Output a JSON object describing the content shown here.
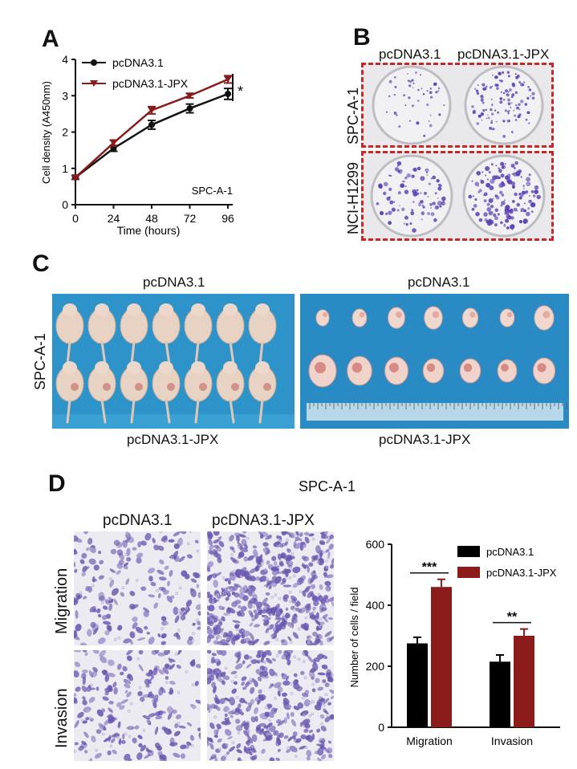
{
  "panels": {
    "A": {
      "letter": "A",
      "cell_line": "SPC-A-1",
      "significance": "*",
      "chart_data": {
        "type": "line",
        "x": [
          0,
          24,
          48,
          72,
          96
        ],
        "xticks": [
          "0",
          "24",
          "48",
          "72",
          "96"
        ],
        "xlabel": "Time (hours)",
        "ylabel": "Cell density (A450nm)",
        "ylim": [
          0,
          4
        ],
        "yticks": [
          "0",
          "1",
          "2",
          "3",
          "4"
        ],
        "legend_position": "top-left",
        "series": [
          {
            "name": "pcDNA3.1",
            "values": [
              0.75,
              1.55,
              2.2,
              2.65,
              3.05
            ],
            "errors": [
              0.05,
              0.08,
              0.12,
              0.12,
              0.15
            ],
            "color": "#111111",
            "marker": "circle"
          },
          {
            "name": "pcDNA3.1-JPX",
            "values": [
              0.75,
              1.7,
              2.6,
              3.0,
              3.45
            ],
            "errors": [
              0.05,
              0.08,
              0.1,
              0.06,
              0.1
            ],
            "color": "#8b1a1a",
            "marker": "triangle-down"
          }
        ]
      }
    },
    "B": {
      "letter": "B",
      "col_labels": [
        "pcDNA3.1",
        "pcDNA3.1-JPX"
      ],
      "row_labels": [
        "SPC-A-1",
        "NCI-H1299"
      ]
    },
    "C": {
      "letter": "C",
      "row_label": "SPC-A-1",
      "left_top": "pcDNA3.1",
      "left_bottom": "pcDNA3.1-JPX",
      "right_top": "pcDNA3.1",
      "right_bottom": "pcDNA3.1-JPX"
    },
    "D": {
      "letter": "D",
      "title": "SPC-A-1",
      "col_labels": [
        "pcDNA3.1",
        "pcDNA3.1-JPX"
      ],
      "row_labels": [
        "Migration",
        "Invasion"
      ],
      "chart_data": {
        "type": "bar",
        "categories": [
          "Migration",
          "Invasion"
        ],
        "ylabel": "Number of cells / field",
        "ylim": [
          0,
          600
        ],
        "yticks": [
          "0",
          "200",
          "400",
          "600"
        ],
        "legend_position": "top-right",
        "series": [
          {
            "name": "pcDNA3.1",
            "values": [
              275,
              215
            ],
            "errors": [
              20,
              22
            ],
            "color": "#000000"
          },
          {
            "name": "pcDNA3.1-JPX",
            "values": [
              460,
              300
            ],
            "errors": [
              25,
              22
            ],
            "color": "#8b1a1a"
          }
        ],
        "annotations": [
          "***",
          "**"
        ]
      }
    }
  }
}
